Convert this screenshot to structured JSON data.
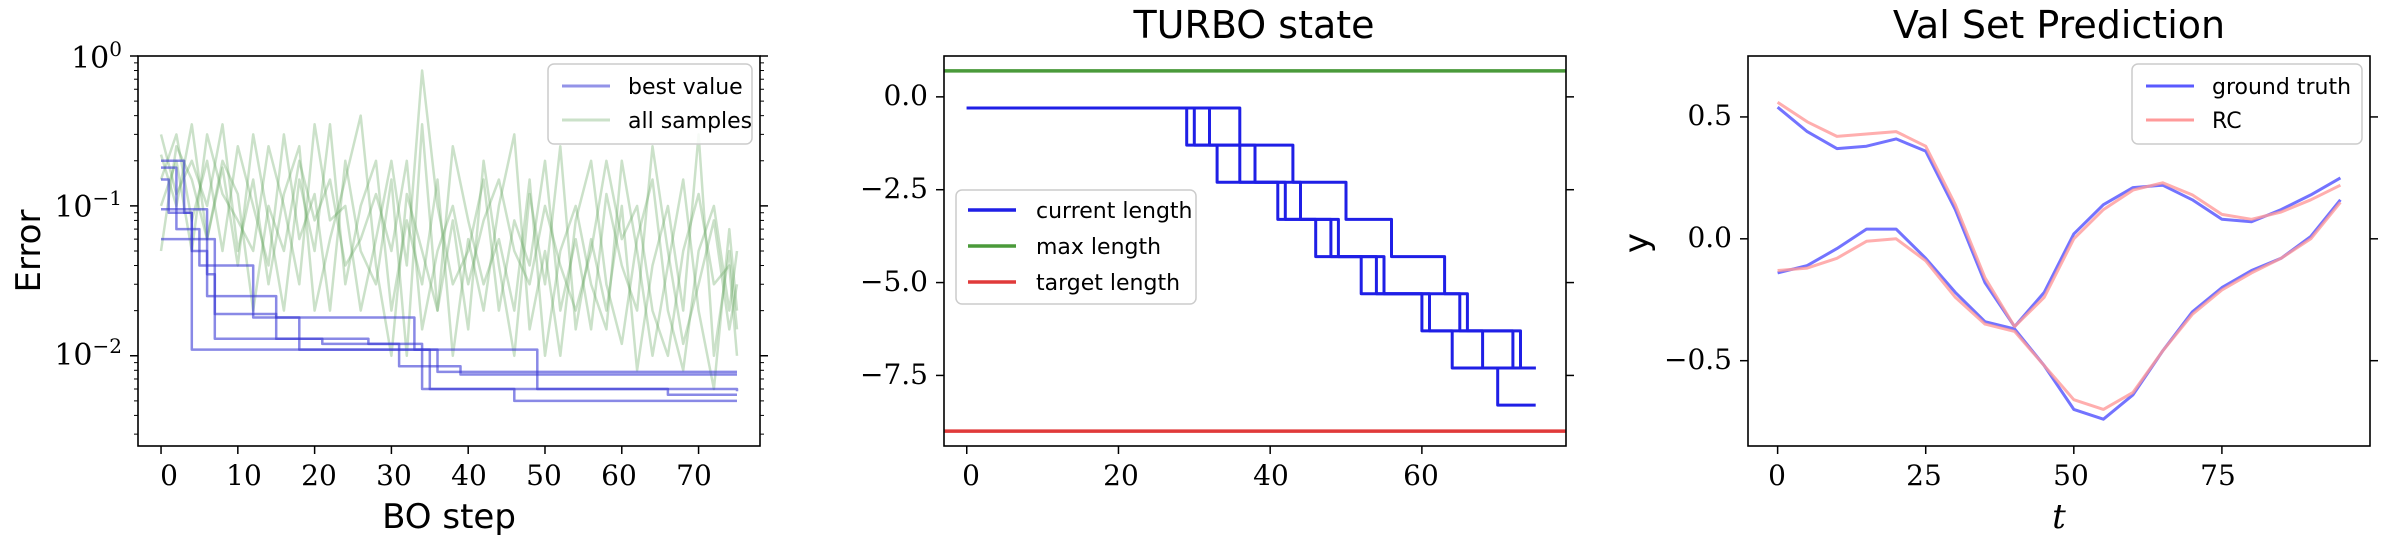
{
  "chart_data": [
    {
      "type": "line",
      "title": "",
      "xlabel": "BO step",
      "ylabel": "Error",
      "yscale": "log",
      "xlim": [
        -3,
        78
      ],
      "ylim": [
        0.0025,
        1.0
      ],
      "xticks": [
        "0",
        "10",
        "20",
        "30",
        "40",
        "50",
        "60",
        "70"
      ],
      "xtick_values": [
        0,
        10,
        20,
        30,
        40,
        50,
        60,
        70
      ],
      "yticks": [
        "10",
        "10",
        "10"
      ],
      "ytick_exponents": [
        "0",
        "−1",
        "−2"
      ],
      "ytick_values": [
        1,
        0.1,
        0.01
      ],
      "legend": {
        "position": "top-right",
        "entries": [
          "best value",
          "all samples"
        ]
      },
      "colors": {
        "best": "#3b3bd6",
        "samples": "#6aaa64"
      },
      "series": [
        {
          "name": "best value",
          "x": [
            0,
            2,
            5,
            12,
            18,
            35,
            75
          ],
          "y": [
            0.18,
            0.07,
            0.04,
            0.018,
            0.011,
            0.006,
            0.0058
          ]
        },
        {
          "name": "",
          "x": [
            0,
            3,
            4,
            6,
            7,
            15,
            21,
            31,
            39,
            75
          ],
          "y": [
            0.2,
            0.09,
            0.05,
            0.035,
            0.019,
            0.013,
            0.012,
            0.0085,
            0.0075,
            0.0075
          ]
        },
        {
          "name": "",
          "x": [
            0,
            4,
            7,
            27,
            34,
            46,
            75
          ],
          "y": [
            0.06,
            0.06,
            0.013,
            0.012,
            0.006,
            0.005,
            0.005
          ]
        },
        {
          "name": "",
          "x": [
            0,
            1,
            4,
            36,
            75
          ],
          "y": [
            0.15,
            0.09,
            0.011,
            0.0078,
            0.0078
          ]
        },
        {
          "name": "",
          "x": [
            0,
            3,
            6,
            15,
            33,
            49,
            66,
            75
          ],
          "y": [
            0.095,
            0.095,
            0.025,
            0.018,
            0.011,
            0.006,
            0.0055,
            0.0055
          ]
        }
      ],
      "samples": [
        {
          "x": [
            0,
            2,
            4,
            6,
            8,
            10,
            12,
            14,
            16,
            18,
            20,
            22,
            24,
            26,
            28,
            30,
            32,
            34,
            36,
            38,
            40,
            42,
            44,
            46,
            48,
            50,
            52,
            54,
            56,
            58,
            60,
            62,
            64,
            66,
            68,
            70,
            72,
            74,
            75
          ],
          "y": [
            0.15,
            0.3,
            0.08,
            0.2,
            0.05,
            0.25,
            0.1,
            0.04,
            0.3,
            0.06,
            0.12,
            0.02,
            0.2,
            0.05,
            0.03,
            0.15,
            0.01,
            0.35,
            0.02,
            0.08,
            0.015,
            0.2,
            0.04,
            0.01,
            0.12,
            0.03,
            0.25,
            0.015,
            0.06,
            0.02,
            0.1,
            0.008,
            0.04,
            0.1,
            0.02,
            0.3,
            0.01,
            0.05,
            0.015
          ]
        },
        {
          "x": [
            0,
            2,
            4,
            6,
            8,
            10,
            12,
            14,
            16,
            18,
            20,
            22,
            24,
            26,
            28,
            30,
            32,
            34,
            36,
            38,
            40,
            42,
            44,
            46,
            48,
            50,
            52,
            54,
            56,
            58,
            60,
            62,
            64,
            66,
            68,
            70,
            72,
            74,
            75
          ],
          "y": [
            0.22,
            0.1,
            0.35,
            0.06,
            0.18,
            0.04,
            0.3,
            0.08,
            0.02,
            0.15,
            0.05,
            0.35,
            0.03,
            0.1,
            0.2,
            0.02,
            0.08,
            0.03,
            0.15,
            0.01,
            0.06,
            0.02,
            0.1,
            0.3,
            0.015,
            0.05,
            0.01,
            0.08,
            0.2,
            0.03,
            0.012,
            0.06,
            0.15,
            0.02,
            0.008,
            0.05,
            0.1,
            0.02,
            0.05
          ]
        },
        {
          "x": [
            0,
            2,
            4,
            6,
            8,
            10,
            12,
            14,
            16,
            18,
            20,
            22,
            24,
            26,
            28,
            30,
            32,
            34,
            36,
            38,
            40,
            42,
            44,
            46,
            48,
            50,
            52,
            54,
            56,
            58,
            60,
            62,
            64,
            66,
            68,
            70,
            72,
            74,
            75
          ],
          "y": [
            0.1,
            0.2,
            0.05,
            0.3,
            0.12,
            0.08,
            0.05,
            0.25,
            0.1,
            0.03,
            0.35,
            0.08,
            0.1,
            0.02,
            0.06,
            0.2,
            0.04,
            0.8,
            0.1,
            0.03,
            0.05,
            0.15,
            0.02,
            0.08,
            0.04,
            0.2,
            0.02,
            0.06,
            0.015,
            0.12,
            0.04,
            0.02,
            0.25,
            0.05,
            0.012,
            0.03,
            0.08,
            0.015,
            0.03
          ]
        },
        {
          "x": [
            0,
            2,
            4,
            6,
            8,
            10,
            12,
            14,
            16,
            18,
            20,
            22,
            24,
            26,
            28,
            30,
            32,
            34,
            36,
            38,
            40,
            42,
            44,
            46,
            48,
            50,
            52,
            54,
            56,
            58,
            60,
            62,
            64,
            66,
            68,
            70,
            72,
            74,
            75
          ],
          "y": [
            0.3,
            0.12,
            0.2,
            0.1,
            0.35,
            0.05,
            0.15,
            0.03,
            0.12,
            0.25,
            0.02,
            0.06,
            0.15,
            0.4,
            0.04,
            0.01,
            0.12,
            0.05,
            0.02,
            0.25,
            0.08,
            0.03,
            0.06,
            0.02,
            0.15,
            0.01,
            0.05,
            0.1,
            0.03,
            0.015,
            0.2,
            0.05,
            0.01,
            0.04,
            0.15,
            0.02,
            0.006,
            0.07,
            0.02
          ]
        },
        {
          "x": [
            0,
            2,
            4,
            6,
            8,
            10,
            12,
            14,
            16,
            18,
            20,
            22,
            24,
            26,
            28,
            30,
            32,
            34,
            36,
            38,
            40,
            42,
            44,
            46,
            48,
            50,
            52,
            54,
            56,
            58,
            60,
            62,
            64,
            66,
            68,
            70,
            72,
            74,
            75
          ],
          "y": [
            0.05,
            0.25,
            0.15,
            0.06,
            0.2,
            0.12,
            0.02,
            0.1,
            0.05,
            0.2,
            0.08,
            0.15,
            0.04,
            0.06,
            0.12,
            0.05,
            0.2,
            0.015,
            0.05,
            0.1,
            0.03,
            0.08,
            0.15,
            0.05,
            0.03,
            0.1,
            0.04,
            0.02,
            0.05,
            0.2,
            0.06,
            0.1,
            0.02,
            0.01,
            0.05,
            0.12,
            0.03,
            0.04,
            0.01
          ]
        }
      ]
    },
    {
      "type": "line",
      "title": "TURBO state",
      "xlabel": "",
      "ylabel": "",
      "xlim": [
        -3,
        79
      ],
      "ylim": [
        -9.4,
        1.1
      ],
      "xticks": [
        "0",
        "20",
        "40",
        "60"
      ],
      "xtick_values": [
        0,
        20,
        40,
        60
      ],
      "yticks": [
        "0.0",
        "−2.5",
        "−5.0",
        "−7.5"
      ],
      "ytick_values": [
        0,
        -2.5,
        -5.0,
        -7.5
      ],
      "legend": {
        "position": "center-left",
        "entries": [
          "current length",
          "max length",
          "target length"
        ]
      },
      "colors": {
        "current": "#1f1fe6",
        "max": "#4a9a3a",
        "target": "#e03a3a"
      },
      "max_length": 0.7,
      "target_length": -9.0,
      "series": [
        {
          "name": "current length",
          "x": [
            0,
            29,
            29,
            33,
            33,
            44,
            44,
            49,
            49,
            55,
            55,
            66,
            66,
            72,
            72,
            75
          ],
          "y": [
            -0.3,
            -0.3,
            -1.3,
            -1.3,
            -2.3,
            -2.3,
            -3.3,
            -3.3,
            -4.3,
            -4.3,
            -5.3,
            -5.3,
            -6.3,
            -6.3,
            -7.3,
            -7.3
          ]
        },
        {
          "name": "",
          "x": [
            0,
            32,
            32,
            38,
            38,
            42,
            42,
            46,
            46,
            54,
            54,
            61,
            61,
            68,
            68,
            75
          ],
          "y": [
            -0.3,
            -0.3,
            -1.3,
            -1.3,
            -2.3,
            -2.3,
            -3.3,
            -3.3,
            -4.3,
            -4.3,
            -5.3,
            -5.3,
            -6.3,
            -6.3,
            -7.3,
            -7.3
          ]
        },
        {
          "name": "",
          "x": [
            0,
            30,
            30,
            36,
            36,
            41,
            41,
            48,
            48,
            52,
            52,
            60,
            60,
            64,
            64,
            70,
            70,
            74,
            74,
            75
          ],
          "y": [
            -0.3,
            -0.3,
            -1.3,
            -1.3,
            -2.3,
            -2.3,
            -3.3,
            -3.3,
            -4.3,
            -4.3,
            -5.3,
            -5.3,
            -6.3,
            -6.3,
            -7.3,
            -7.3,
            -8.3,
            -8.3,
            -8.3,
            -8.3
          ]
        },
        {
          "name": "",
          "x": [
            0,
            36,
            36,
            43,
            43,
            50,
            50,
            56,
            56,
            63,
            63,
            65,
            65,
            73,
            73,
            75
          ],
          "y": [
            -0.3,
            -0.3,
            -1.3,
            -1.3,
            -2.3,
            -2.3,
            -3.3,
            -3.3,
            -4.3,
            -4.3,
            -5.3,
            -5.3,
            -6.3,
            -6.3,
            -7.3,
            -7.3
          ]
        }
      ]
    },
    {
      "type": "line",
      "title": "Val Set Prediction",
      "xlabel": "t",
      "ylabel": "y",
      "xlim": [
        -5,
        100
      ],
      "ylim": [
        -0.85,
        0.75
      ],
      "xticks": [
        "0",
        "25",
        "50",
        "75"
      ],
      "xtick_values": [
        0,
        25,
        50,
        75
      ],
      "yticks": [
        "0.5",
        "0.0",
        "−0.5"
      ],
      "ytick_values": [
        0.5,
        0.0,
        -0.5
      ],
      "legend": {
        "position": "top-right",
        "entries": [
          "ground truth",
          "RC"
        ]
      },
      "colors": {
        "truth": "#5a5aff",
        "rc": "#ff9a9a"
      },
      "series": [
        {
          "name": "ground truth",
          "x": [
            0,
            5,
            10,
            15,
            20,
            25,
            30,
            35,
            40,
            45,
            50,
            55,
            60,
            65,
            70,
            75,
            80,
            85,
            90,
            95
          ],
          "y": [
            0.54,
            0.44,
            0.37,
            0.38,
            0.41,
            0.36,
            0.12,
            -0.18,
            -0.36,
            -0.22,
            0.02,
            0.14,
            0.21,
            0.22,
            0.16,
            0.08,
            0.07,
            0.12,
            0.18,
            0.25
          ]
        },
        {
          "name": "",
          "x": [
            0,
            5,
            10,
            15,
            20,
            25,
            30,
            35,
            40,
            45,
            50,
            55,
            60,
            65,
            70,
            75,
            80,
            85,
            90,
            95
          ],
          "y": [
            -0.14,
            -0.11,
            -0.04,
            0.04,
            0.04,
            -0.08,
            -0.22,
            -0.34,
            -0.37,
            -0.52,
            -0.7,
            -0.74,
            -0.64,
            -0.46,
            -0.3,
            -0.2,
            -0.13,
            -0.08,
            0.01,
            0.16
          ]
        },
        {
          "name": "RC",
          "x": [
            0,
            5,
            10,
            15,
            20,
            25,
            30,
            35,
            40,
            45,
            50,
            55,
            60,
            65,
            70,
            75,
            80,
            85,
            90,
            95
          ],
          "y": [
            0.56,
            0.48,
            0.42,
            0.43,
            0.44,
            0.38,
            0.14,
            -0.16,
            -0.36,
            -0.24,
            0.0,
            0.12,
            0.2,
            0.23,
            0.18,
            0.1,
            0.08,
            0.11,
            0.16,
            0.22
          ]
        },
        {
          "name": "",
          "x": [
            0,
            5,
            10,
            15,
            20,
            25,
            30,
            35,
            40,
            45,
            50,
            55,
            60,
            65,
            70,
            75,
            80,
            85,
            90,
            95
          ],
          "y": [
            -0.13,
            -0.12,
            -0.08,
            -0.01,
            0.0,
            -0.09,
            -0.24,
            -0.35,
            -0.38,
            -0.52,
            -0.66,
            -0.7,
            -0.63,
            -0.46,
            -0.31,
            -0.21,
            -0.14,
            -0.08,
            0.0,
            0.15
          ]
        }
      ]
    }
  ]
}
